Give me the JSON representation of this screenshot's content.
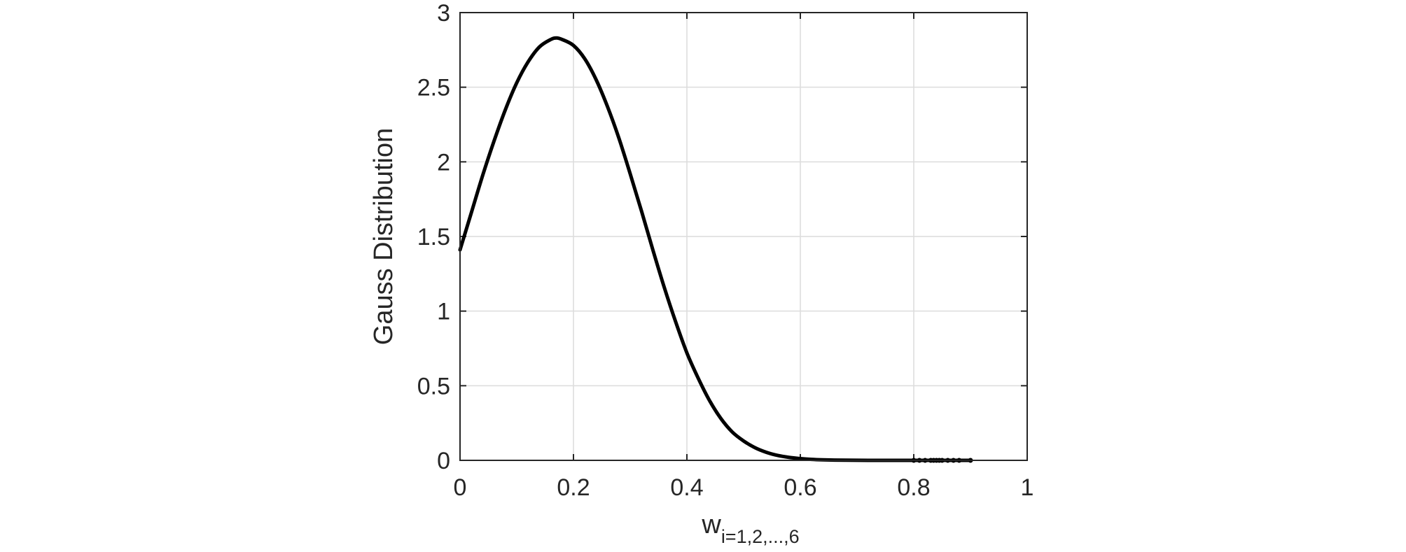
{
  "chart_data": {
    "type": "line",
    "title": "",
    "xlabel": "w",
    "xlabel_subscript": "i=1,2,...,6",
    "ylabel": "Gauss Distribution",
    "xlim": [
      0,
      1
    ],
    "ylim": [
      0,
      3
    ],
    "xticks": [
      "0",
      "0.2",
      "0.4",
      "0.6",
      "0.8",
      "1"
    ],
    "yticks": [
      "0",
      "0.5",
      "1",
      "1.5",
      "2",
      "2.5",
      "3"
    ],
    "grid": true,
    "legend": "none",
    "line_color": "#000000",
    "series": [
      {
        "values": [
          [
            0.0,
            1.41
          ],
          [
            0.02,
            1.66
          ],
          [
            0.04,
            1.91
          ],
          [
            0.06,
            2.14
          ],
          [
            0.08,
            2.35
          ],
          [
            0.1,
            2.53
          ],
          [
            0.12,
            2.67
          ],
          [
            0.14,
            2.77
          ],
          [
            0.16,
            2.82
          ],
          [
            0.17,
            2.83
          ],
          [
            0.18,
            2.82
          ],
          [
            0.2,
            2.78
          ],
          [
            0.22,
            2.69
          ],
          [
            0.24,
            2.55
          ],
          [
            0.26,
            2.37
          ],
          [
            0.28,
            2.16
          ],
          [
            0.3,
            1.92
          ],
          [
            0.32,
            1.67
          ],
          [
            0.34,
            1.41
          ],
          [
            0.36,
            1.16
          ],
          [
            0.38,
            0.93
          ],
          [
            0.4,
            0.72
          ],
          [
            0.42,
            0.55
          ],
          [
            0.44,
            0.4
          ],
          [
            0.46,
            0.28
          ],
          [
            0.48,
            0.19
          ],
          [
            0.5,
            0.13
          ],
          [
            0.52,
            0.085
          ],
          [
            0.54,
            0.054
          ],
          [
            0.56,
            0.033
          ],
          [
            0.58,
            0.02
          ],
          [
            0.6,
            0.012
          ],
          [
            0.62,
            0.0065
          ],
          [
            0.64,
            0.0035
          ],
          [
            0.66,
            0.0018
          ],
          [
            0.68,
            0.0009
          ],
          [
            0.7,
            0.0004
          ],
          [
            0.72,
            0.0002
          ],
          [
            0.74,
            0.0001
          ],
          [
            0.76,
            0.0
          ],
          [
            0.78,
            0.0
          ],
          [
            0.8,
            0.0
          ],
          [
            0.82,
            0.0
          ],
          [
            0.84,
            0.0
          ],
          [
            0.86,
            0.0
          ],
          [
            0.88,
            0.0
          ],
          [
            0.9,
            0.0
          ]
        ],
        "markers_x": [
          0.8,
          0.81,
          0.82,
          0.83,
          0.835,
          0.84,
          0.845,
          0.85,
          0.86,
          0.87,
          0.88,
          0.9
        ],
        "markers_y": 0.0
      }
    ]
  }
}
